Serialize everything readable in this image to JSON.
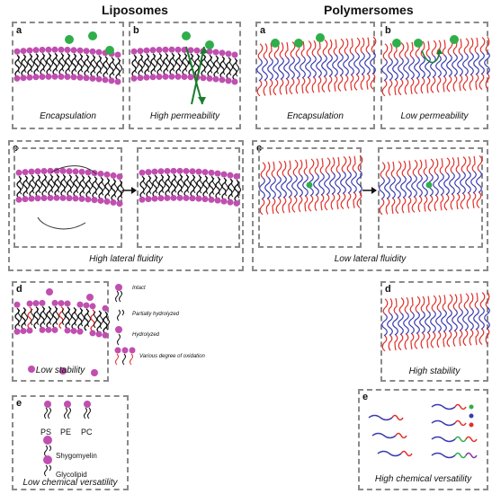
{
  "liposomes": {
    "title": "Liposomes",
    "panel_a": {
      "letter": "a",
      "caption": "Encapsulation"
    },
    "panel_b": {
      "letter": "b",
      "caption": "High permeability"
    },
    "panel_c": {
      "letter": "c",
      "caption": "High lateral fluidity"
    },
    "panel_d": {
      "letter": "d",
      "caption": "Low stability",
      "legend": [
        "Intact",
        "Partially hydrolyzed",
        "Hydrolyzed",
        "Various degree of oxidation"
      ]
    },
    "panel_e": {
      "letter": "e",
      "caption": "Low chemical versatility",
      "lipids": [
        "PS",
        "PE",
        "PC"
      ],
      "shygomyelin": "Shygomyelin",
      "glycolipid": "Glycolipid"
    }
  },
  "polymersomes": {
    "title": "Polymersomes",
    "panel_a": {
      "letter": "a",
      "caption": "Encapsulation"
    },
    "panel_b": {
      "letter": "b",
      "caption": "Low permeability"
    },
    "panel_c": {
      "letter": "c",
      "caption": "Low lateral fluidity"
    },
    "panel_d": {
      "letter": "d",
      "caption": "High stability"
    },
    "panel_e": {
      "letter": "e",
      "caption": "High chemical versatility"
    }
  },
  "colors": {
    "headgroup": "#c04fb0",
    "hydrophobic_block": "#3a3ab0",
    "hydrophilic_block": "#e0302a",
    "solute": "#2fae4a",
    "box_border": "#8a8a8a"
  }
}
